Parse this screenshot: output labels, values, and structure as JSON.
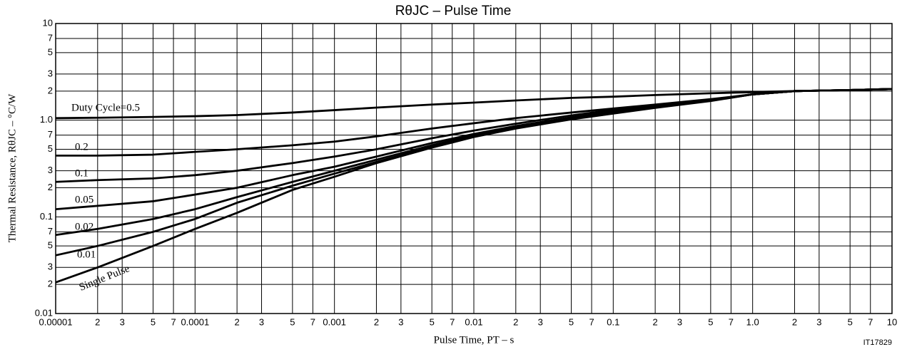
{
  "chart_data": {
    "type": "line",
    "title": "RθJC – Pulse Time",
    "x_label": "Pulse Time, PT – s",
    "y_label": "Thermal Resistance, RθJC – °C/W",
    "code": "IT17829",
    "log_x": true,
    "log_y": true,
    "grid": true,
    "xlim": [
      1e-05,
      10
    ],
    "ylim": [
      0.01,
      10
    ],
    "xticks": [
      1e-05,
      {
        "value": 2e-05,
        "label": "2"
      },
      {
        "value": 3e-05,
        "label": "3"
      },
      {
        "value": 5e-05,
        "label": "5"
      },
      {
        "value": 7e-05,
        "label": "7"
      },
      0.0001,
      {
        "value": 0.0002,
        "label": "2"
      },
      {
        "value": 0.0003,
        "label": "3"
      },
      {
        "value": 0.0005,
        "label": "5"
      },
      {
        "value": 0.0007,
        "label": "7"
      },
      0.001,
      {
        "value": 0.002,
        "label": "2"
      },
      {
        "value": 0.003,
        "label": "3"
      },
      {
        "value": 0.005,
        "label": "5"
      },
      {
        "value": 0.007,
        "label": "7"
      },
      0.01,
      {
        "value": 0.02,
        "label": "2"
      },
      {
        "value": 0.03,
        "label": "3"
      },
      {
        "value": 0.05,
        "label": "5"
      },
      {
        "value": 0.07,
        "label": "7"
      },
      0.1,
      {
        "value": 0.2,
        "label": "2"
      },
      {
        "value": 0.3,
        "label": "3"
      },
      {
        "value": 0.5,
        "label": "5"
      },
      {
        "value": 0.7,
        "label": "7"
      },
      {
        "value": 1,
        "label": "1.0"
      },
      2,
      3,
      5,
      7,
      10
    ],
    "yticks": [
      0.01,
      {
        "value": 0.02,
        "label": "2"
      },
      {
        "value": 0.03,
        "label": "3"
      },
      {
        "value": 0.05,
        "label": "5"
      },
      {
        "value": 0.07,
        "label": "7"
      },
      0.1,
      {
        "value": 0.2,
        "label": "2"
      },
      {
        "value": 0.3,
        "label": "3"
      },
      {
        "value": 0.5,
        "label": "5"
      },
      {
        "value": 0.7,
        "label": "7"
      },
      {
        "value": 1,
        "label": "1.0"
      },
      2,
      3,
      5,
      7,
      10
    ],
    "x": [
      1e-05,
      2e-05,
      5e-05,
      0.0001,
      0.0002,
      0.0005,
      0.001,
      0.002,
      0.005,
      0.01,
      0.02,
      0.05,
      0.1,
      0.2,
      0.5,
      1,
      2,
      5,
      10
    ],
    "series": [
      {
        "name": "Duty Cycle=0.5",
        "color": "#000000",
        "values": [
          1.05,
          1.06,
          1.08,
          1.1,
          1.13,
          1.2,
          1.27,
          1.35,
          1.45,
          1.52,
          1.6,
          1.7,
          1.75,
          1.82,
          1.9,
          1.95,
          2.0,
          2.05,
          2.1
        ]
      },
      {
        "name": "0.2",
        "color": "#000000",
        "values": [
          0.43,
          0.43,
          0.44,
          0.47,
          0.5,
          0.55,
          0.6,
          0.68,
          0.82,
          0.93,
          1.05,
          1.2,
          1.32,
          1.45,
          1.65,
          1.85,
          2.0,
          2.05,
          2.1
        ]
      },
      {
        "name": "0.1",
        "color": "#000000",
        "values": [
          0.23,
          0.24,
          0.25,
          0.27,
          0.3,
          0.36,
          0.42,
          0.5,
          0.65,
          0.78,
          0.92,
          1.12,
          1.28,
          1.42,
          1.62,
          1.85,
          2.0,
          2.05,
          2.1
        ]
      },
      {
        "name": "0.05",
        "color": "#000000",
        "values": [
          0.12,
          0.13,
          0.145,
          0.17,
          0.2,
          0.27,
          0.33,
          0.42,
          0.58,
          0.72,
          0.87,
          1.07,
          1.23,
          1.38,
          1.6,
          1.85,
          2.0,
          2.05,
          2.1
        ]
      },
      {
        "name": "0.02",
        "color": "#000000",
        "values": [
          0.065,
          0.075,
          0.095,
          0.12,
          0.16,
          0.23,
          0.3,
          0.39,
          0.55,
          0.7,
          0.85,
          1.05,
          1.2,
          1.37,
          1.6,
          1.85,
          2.0,
          2.05,
          2.1
        ]
      },
      {
        "name": "0.01",
        "color": "#000000",
        "values": [
          0.04,
          0.05,
          0.07,
          0.095,
          0.14,
          0.21,
          0.28,
          0.37,
          0.53,
          0.68,
          0.83,
          1.03,
          1.18,
          1.35,
          1.6,
          1.85,
          2.0,
          2.05,
          2.1
        ]
      },
      {
        "name": "Single Pulse",
        "color": "#000000",
        "values": [
          0.021,
          0.03,
          0.05,
          0.075,
          0.11,
          0.19,
          0.26,
          0.36,
          0.52,
          0.67,
          0.82,
          1.02,
          1.17,
          1.34,
          1.58,
          1.85,
          2.0,
          2.05,
          2.1
        ]
      }
    ]
  }
}
